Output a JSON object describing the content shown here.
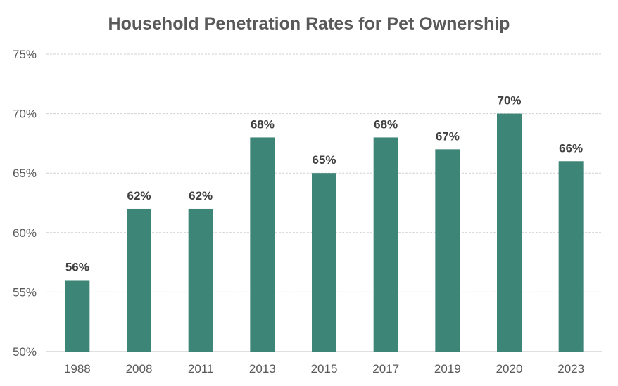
{
  "chart_data": {
    "type": "bar",
    "title": "Household Penetration Rates for Pet Ownership",
    "xlabel": "",
    "ylabel": "",
    "categories": [
      "1988",
      "2008",
      "2011",
      "2013",
      "2015",
      "2017",
      "2019",
      "2020",
      "2023"
    ],
    "values": [
      56,
      62,
      62,
      68,
      65,
      68,
      67,
      70,
      66
    ],
    "data_labels": [
      "56%",
      "62%",
      "62%",
      "68%",
      "65%",
      "68%",
      "67%",
      "70%",
      "66%"
    ],
    "ylim": [
      50,
      75
    ],
    "yticks": [
      50,
      55,
      60,
      65,
      70,
      75
    ],
    "ytick_labels": [
      "50%",
      "55%",
      "60%",
      "65%",
      "70%",
      "75%"
    ],
    "grid": true,
    "bar_color": "#3d8577"
  }
}
